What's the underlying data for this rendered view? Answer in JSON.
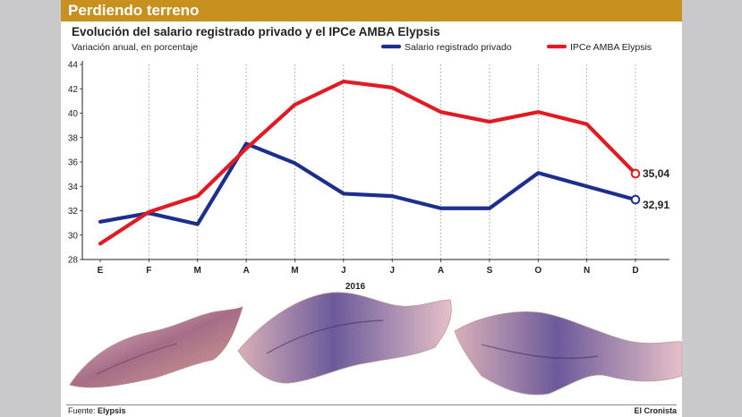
{
  "header": {
    "title": "Perdiendo terreno"
  },
  "chart_data": {
    "type": "line",
    "title": "Evolución del salario registrado privado y el IPCe AMBA Elypsis",
    "ylabel": "Variación anual, en porcentaje",
    "xlabel": "2016",
    "categories": [
      "E",
      "F",
      "M",
      "A",
      "M",
      "J",
      "J",
      "A",
      "S",
      "O",
      "N",
      "D"
    ],
    "ylim": [
      28,
      44
    ],
    "yticks": [
      28,
      30,
      32,
      34,
      36,
      38,
      40,
      42,
      44
    ],
    "grid": "vertical dotted",
    "legend_position": "top-right",
    "series": [
      {
        "name": "Salario registrado privado",
        "color": "#1c2f8c",
        "values": [
          31.1,
          31.8,
          30.9,
          37.5,
          35.9,
          33.4,
          33.2,
          32.2,
          32.2,
          35.1,
          34.0,
          32.91
        ]
      },
      {
        "name": "IPCe AMBA Elypsis",
        "color": "#e01b24",
        "values": [
          29.3,
          31.9,
          33.2,
          37.1,
          40.7,
          42.6,
          42.1,
          40.1,
          39.3,
          40.1,
          39.1,
          35.04
        ]
      }
    ],
    "end_labels": [
      "32,91",
      "35,04"
    ]
  },
  "footer": {
    "source_label": "Fuente:",
    "source_name": "Elypsis",
    "publisher": "El Cronista"
  }
}
